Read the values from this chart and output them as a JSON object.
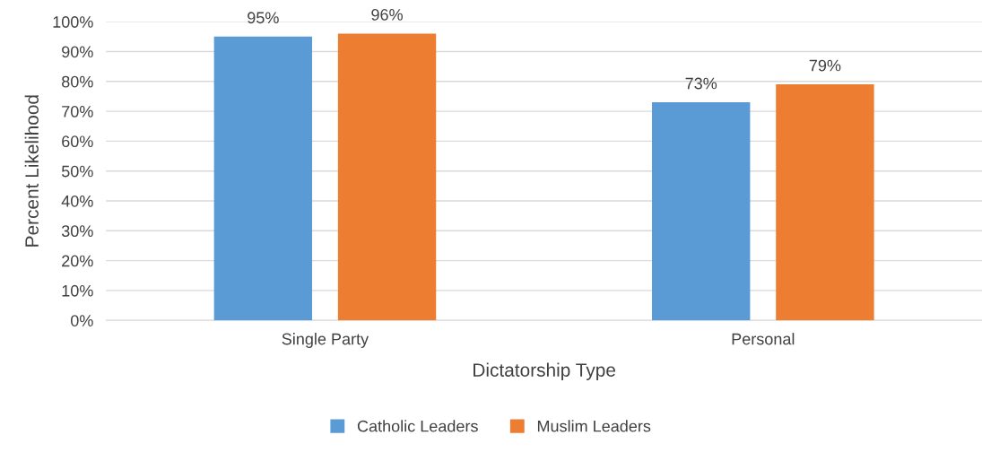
{
  "chart_data": {
    "type": "bar",
    "xlabel": "Dictatorship Type",
    "ylabel": "Percent Likelihood",
    "categories": [
      "Single Party",
      "Personal"
    ],
    "series": [
      {
        "name": "Catholic Leaders",
        "color": "#5b9bd5",
        "values": [
          95,
          73
        ],
        "value_labels": [
          "95%",
          "73%"
        ]
      },
      {
        "name": "Muslim Leaders",
        "color": "#ed7d31",
        "values": [
          96,
          79
        ],
        "value_labels": [
          "96%",
          "79%"
        ]
      }
    ],
    "ylim": [
      0,
      100
    ],
    "yticks": [
      {
        "value": 0,
        "label": "0%"
      },
      {
        "value": 10,
        "label": "10%"
      },
      {
        "value": 20,
        "label": "20%"
      },
      {
        "value": 30,
        "label": "30%"
      },
      {
        "value": 40,
        "label": "40%"
      },
      {
        "value": 50,
        "label": "50%"
      },
      {
        "value": 60,
        "label": "60%"
      },
      {
        "value": 70,
        "label": "70%"
      },
      {
        "value": 80,
        "label": "80%"
      },
      {
        "value": 90,
        "label": "90%"
      },
      {
        "value": 100,
        "label": "100%"
      }
    ],
    "grid": "y",
    "legend": "bottom"
  }
}
